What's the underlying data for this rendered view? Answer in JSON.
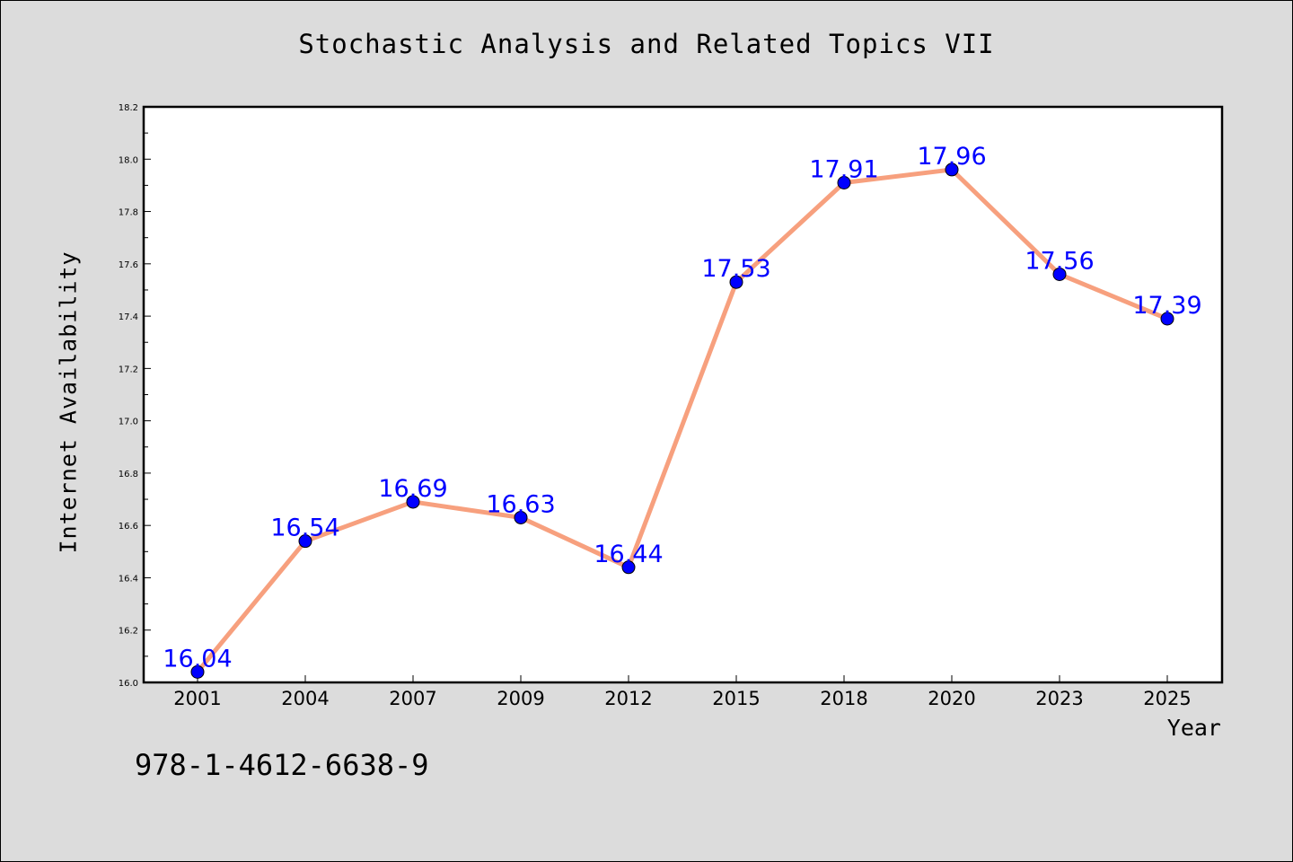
{
  "chart_data": {
    "type": "line",
    "title": "Stochastic Analysis and Related Topics VII",
    "xlabel": "Year",
    "ylabel": "Internet Availability",
    "categories": [
      "2001",
      "2004",
      "2007",
      "2009",
      "2012",
      "2015",
      "2018",
      "2020",
      "2023",
      "2025"
    ],
    "series": [
      {
        "values": [
          16.04,
          16.54,
          16.69,
          16.63,
          16.44,
          17.53,
          17.91,
          17.96,
          17.56,
          17.39
        ],
        "data_labels": [
          "16.04",
          "16.54",
          "16.69",
          "16.63",
          "16.44",
          "17.53",
          "17.91",
          "17.96",
          "17.56",
          "17.39"
        ],
        "line_color": "#f7a07e",
        "marker_color": "#0000ff",
        "label_color": "#0000ff"
      }
    ],
    "ylim": [
      16.0,
      18.2
    ],
    "yticks": [
      "16.0",
      "16.2",
      "16.4",
      "16.6",
      "16.8",
      "17.0",
      "17.2",
      "17.4",
      "17.6",
      "17.8",
      "18.0",
      "18.2"
    ],
    "grid": false,
    "legend": "none"
  },
  "footer": {
    "isbn": "978-1-4612-6638-9"
  },
  "colors": {
    "background": "#dcdcdc",
    "plot_background": "#ffffff"
  }
}
